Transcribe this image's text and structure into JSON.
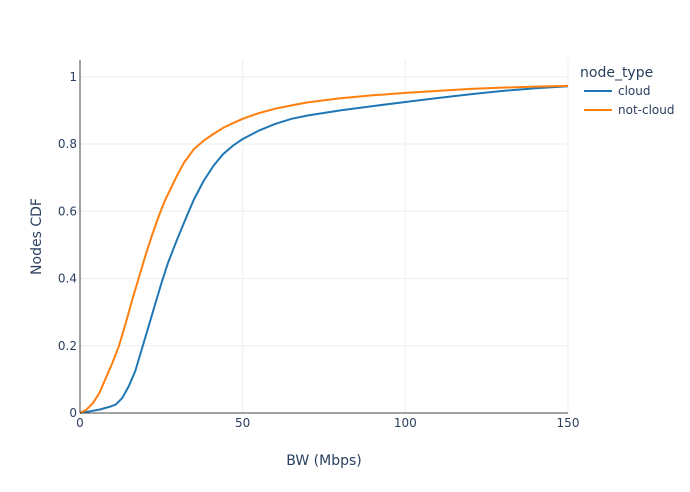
{
  "chart_data": {
    "type": "line",
    "title": "",
    "xlabel": "BW (Mbps)",
    "ylabel": "Nodes CDF",
    "xlim": [
      0,
      150
    ],
    "ylim": [
      0,
      1.05
    ],
    "xticks": [
      0,
      50,
      100,
      150
    ],
    "yticks": [
      0,
      0.2,
      0.4,
      0.6,
      0.8,
      1
    ],
    "xtick_labels": [
      "0",
      "50",
      "100",
      "150"
    ],
    "ytick_labels": [
      "0",
      "0.2",
      "0.4",
      "0.6",
      "0.8",
      "1"
    ],
    "grid": true,
    "legend": {
      "title": "node_type",
      "placement": "top-right, outside plot"
    },
    "series": [
      {
        "name": "cloud",
        "color": "#1f77b4",
        "points": [
          [
            0,
            0
          ],
          [
            3,
            0.005
          ],
          [
            6,
            0.01
          ],
          [
            9,
            0.018
          ],
          [
            11,
            0.025
          ],
          [
            13,
            0.045
          ],
          [
            15,
            0.08
          ],
          [
            17,
            0.125
          ],
          [
            19,
            0.19
          ],
          [
            21,
            0.255
          ],
          [
            23,
            0.32
          ],
          [
            25,
            0.385
          ],
          [
            27,
            0.445
          ],
          [
            30,
            0.52
          ],
          [
            33,
            0.59
          ],
          [
            35,
            0.635
          ],
          [
            38,
            0.69
          ],
          [
            41,
            0.735
          ],
          [
            44,
            0.77
          ],
          [
            47,
            0.795
          ],
          [
            50,
            0.815
          ],
          [
            55,
            0.84
          ],
          [
            60,
            0.86
          ],
          [
            65,
            0.875
          ],
          [
            70,
            0.885
          ],
          [
            80,
            0.9
          ],
          [
            90,
            0.913
          ],
          [
            100,
            0.925
          ],
          [
            110,
            0.937
          ],
          [
            120,
            0.948
          ],
          [
            130,
            0.958
          ],
          [
            140,
            0.966
          ],
          [
            150,
            0.972
          ]
        ]
      },
      {
        "name": "not-cloud",
        "color": "#ff7f0e",
        "points": [
          [
            0,
            0
          ],
          [
            2,
            0.01
          ],
          [
            4,
            0.03
          ],
          [
            6,
            0.06
          ],
          [
            8,
            0.105
          ],
          [
            10,
            0.15
          ],
          [
            12,
            0.2
          ],
          [
            14,
            0.265
          ],
          [
            16,
            0.335
          ],
          [
            18,
            0.4
          ],
          [
            20,
            0.465
          ],
          [
            22,
            0.525
          ],
          [
            24,
            0.58
          ],
          [
            26,
            0.63
          ],
          [
            28,
            0.67
          ],
          [
            30,
            0.71
          ],
          [
            32,
            0.745
          ],
          [
            35,
            0.785
          ],
          [
            38,
            0.81
          ],
          [
            41,
            0.83
          ],
          [
            44,
            0.848
          ],
          [
            47,
            0.862
          ],
          [
            50,
            0.875
          ],
          [
            55,
            0.892
          ],
          [
            60,
            0.905
          ],
          [
            65,
            0.915
          ],
          [
            70,
            0.924
          ],
          [
            80,
            0.936
          ],
          [
            90,
            0.945
          ],
          [
            100,
            0.952
          ],
          [
            110,
            0.958
          ],
          [
            120,
            0.964
          ],
          [
            130,
            0.968
          ],
          [
            140,
            0.971
          ],
          [
            150,
            0.973
          ]
        ]
      }
    ]
  }
}
